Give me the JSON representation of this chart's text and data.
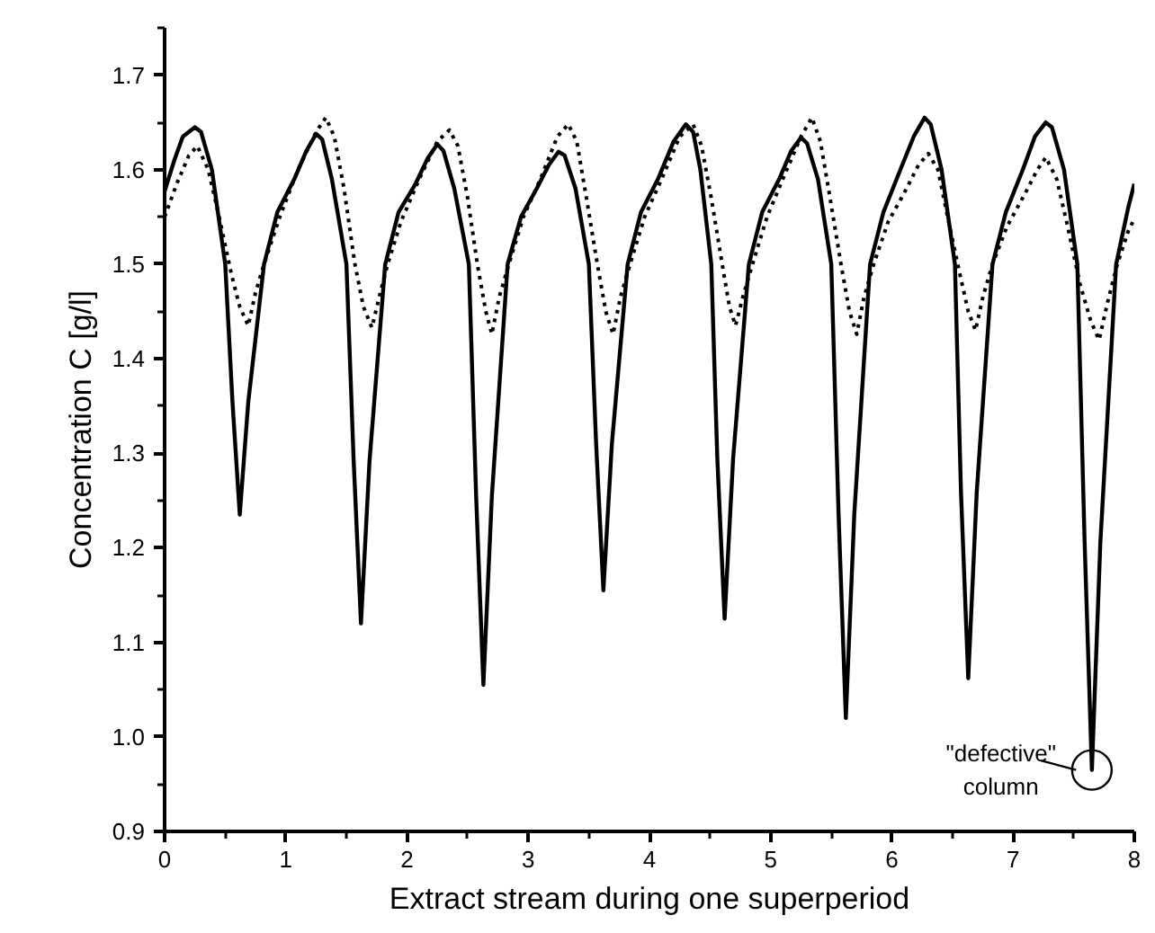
{
  "chart_data": {
    "type": "line",
    "xlabel": "Extract stream during one superperiod",
    "ylabel": "Concentration C [g/l]",
    "xlim": [
      0,
      8
    ],
    "ylim": [
      0.9,
      1.75
    ],
    "xticks": [
      0,
      1,
      2,
      3,
      4,
      5,
      6,
      7,
      8
    ],
    "yticks": [
      0.9,
      {
        "value": 1.0,
        "label": "1.0"
      },
      1.1,
      1.2,
      1.3,
      1.4,
      1.5,
      1.6,
      1.7
    ],
    "grid": false,
    "series": [
      {
        "color": "#000000",
        "line_style": "solid",
        "x": [
          0,
          0.08,
          0.15,
          0.25,
          0.3,
          0.39,
          0.5,
          0.56,
          0.62,
          0.69,
          0.82,
          0.93,
          1.07,
          1.17,
          1.25,
          1.3,
          1.38,
          1.5,
          1.56,
          1.62,
          1.69,
          1.82,
          1.93,
          2.07,
          2.17,
          2.25,
          2.3,
          2.39,
          2.51,
          2.57,
          2.63,
          2.7,
          2.83,
          2.94,
          3.07,
          3.17,
          3.25,
          3.3,
          3.39,
          3.5,
          3.56,
          3.62,
          3.69,
          3.82,
          3.93,
          4.07,
          4.2,
          4.3,
          4.36,
          4.42,
          4.51,
          4.56,
          4.62,
          4.69,
          4.82,
          4.93,
          5.07,
          5.17,
          5.25,
          5.3,
          5.39,
          5.5,
          5.56,
          5.62,
          5.69,
          5.82,
          5.93,
          6.07,
          6.18,
          6.27,
          6.32,
          6.41,
          6.52,
          6.57,
          6.63,
          6.7,
          6.83,
          6.94,
          7.08,
          7.18,
          7.27,
          7.32,
          7.42,
          7.53,
          7.59,
          7.65,
          7.72,
          7.85,
          7.95,
          8.0
        ],
        "values": [
          1.577,
          1.61,
          1.635,
          1.645,
          1.64,
          1.6,
          1.5,
          1.354,
          1.235,
          1.354,
          1.5,
          1.555,
          1.59,
          1.62,
          1.638,
          1.632,
          1.59,
          1.5,
          1.291,
          1.12,
          1.291,
          1.5,
          1.555,
          1.585,
          1.612,
          1.627,
          1.62,
          1.58,
          1.5,
          1.255,
          1.055,
          1.255,
          1.5,
          1.55,
          1.58,
          1.605,
          1.619,
          1.615,
          1.58,
          1.5,
          1.31,
          1.155,
          1.31,
          1.5,
          1.555,
          1.59,
          1.63,
          1.648,
          1.64,
          1.6,
          1.5,
          1.294,
          1.125,
          1.294,
          1.5,
          1.555,
          1.59,
          1.62,
          1.634,
          1.628,
          1.59,
          1.5,
          1.236,
          1.02,
          1.236,
          1.5,
          1.555,
          1.6,
          1.635,
          1.655,
          1.648,
          1.6,
          1.5,
          1.259,
          1.062,
          1.259,
          1.5,
          1.555,
          1.6,
          1.635,
          1.65,
          1.645,
          1.6,
          1.5,
          1.206,
          0.965,
          1.206,
          1.5,
          1.56,
          1.585
        ]
      },
      {
        "color": "#000000",
        "line_style": "dotted",
        "x": [
          0,
          0.1,
          0.2,
          0.27,
          0.36,
          0.45,
          0.55,
          0.62,
          0.69,
          0.75,
          0.82,
          0.95,
          1.1,
          1.25,
          1.33,
          1.4,
          1.48,
          1.57,
          1.64,
          1.71,
          1.77,
          1.84,
          1.95,
          2.1,
          2.25,
          2.35,
          2.42,
          2.5,
          2.58,
          2.65,
          2.7,
          2.76,
          2.84,
          2.96,
          3.1,
          3.24,
          3.33,
          3.4,
          3.48,
          3.57,
          3.64,
          3.7,
          3.76,
          3.84,
          3.96,
          4.1,
          4.25,
          4.36,
          4.43,
          4.51,
          4.6,
          4.66,
          4.71,
          4.77,
          4.85,
          4.97,
          5.1,
          5.25,
          5.34,
          5.41,
          5.49,
          5.58,
          5.65,
          5.71,
          5.77,
          5.85,
          5.97,
          6.1,
          6.22,
          6.3,
          6.38,
          6.46,
          6.56,
          6.63,
          6.69,
          6.75,
          6.83,
          6.95,
          7.1,
          7.2,
          7.27,
          7.36,
          7.45,
          7.55,
          7.64,
          7.71,
          7.78,
          7.86,
          7.95,
          8.0
        ],
        "values": [
          1.55,
          1.585,
          1.615,
          1.625,
          1.6,
          1.55,
          1.49,
          1.455,
          1.435,
          1.47,
          1.5,
          1.55,
          1.6,
          1.64,
          1.655,
          1.635,
          1.58,
          1.5,
          1.455,
          1.433,
          1.465,
          1.5,
          1.545,
          1.59,
          1.63,
          1.642,
          1.625,
          1.57,
          1.5,
          1.45,
          1.426,
          1.465,
          1.5,
          1.55,
          1.59,
          1.635,
          1.648,
          1.63,
          1.57,
          1.5,
          1.45,
          1.426,
          1.465,
          1.5,
          1.55,
          1.59,
          1.635,
          1.648,
          1.625,
          1.57,
          1.5,
          1.455,
          1.435,
          1.465,
          1.5,
          1.55,
          1.59,
          1.635,
          1.655,
          1.63,
          1.57,
          1.5,
          1.45,
          1.426,
          1.465,
          1.5,
          1.545,
          1.575,
          1.605,
          1.617,
          1.6,
          1.55,
          1.49,
          1.45,
          1.43,
          1.465,
          1.5,
          1.54,
          1.575,
          1.6,
          1.613,
          1.59,
          1.54,
          1.48,
          1.44,
          1.42,
          1.46,
          1.5,
          1.535,
          1.548
        ]
      }
    ],
    "annotations": [
      {
        "text": "\"defective\"\ncolumn",
        "x": 7.65,
        "y": 0.965
      }
    ]
  }
}
